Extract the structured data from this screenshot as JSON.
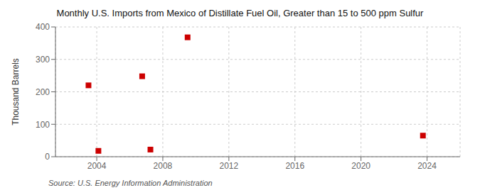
{
  "chart_data": {
    "type": "scatter",
    "title": "Monthly U.S. Imports from Mexico of Distillate Fuel Oil, Greater than 15 to 500 ppm Sulfur",
    "ylabel": "Thousand Barrels",
    "annotations": [
      "Source: U.S. Energy Information Administration"
    ],
    "x": [
      2003.5,
      2004.1,
      2006.75,
      2007.25,
      2009.5,
      2023.75
    ],
    "values": [
      220,
      18,
      248,
      22,
      368,
      65
    ],
    "color": "#cc0000",
    "marker": "square",
    "xlim": [
      2001.5,
      2026
    ],
    "ylim": [
      0,
      400
    ],
    "xticks": [
      2004,
      2008,
      2012,
      2016,
      2020,
      2024
    ],
    "yticks": [
      0,
      100,
      200,
      300,
      400
    ],
    "grid": true
  }
}
